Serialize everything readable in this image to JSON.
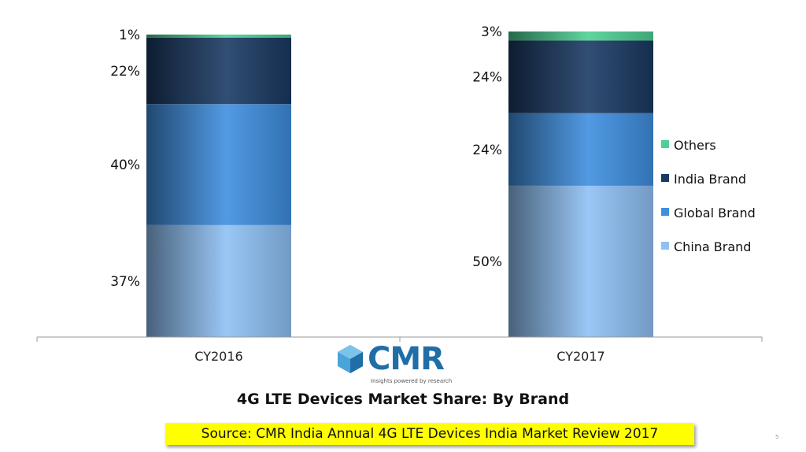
{
  "chart_data": {
    "type": "bar",
    "stacked": true,
    "title": "4G LTE Devices Market Share:  By Brand",
    "categories": [
      "CY2016",
      "CY2017"
    ],
    "series": [
      {
        "name": "China Brand",
        "values": [
          37,
          50
        ],
        "color": "#8fc1f5"
      },
      {
        "name": "Global Brand",
        "values": [
          40,
          24
        ],
        "color": "#3f8fe0"
      },
      {
        "name": "India Brand",
        "values": [
          22,
          24
        ],
        "color": "#1a3a63"
      },
      {
        "name": "Others",
        "values": [
          1,
          3
        ],
        "color": "#4fcf94"
      }
    ],
    "data_labels": [
      [
        "37%",
        "40%",
        "22%",
        "1%"
      ],
      [
        "50%",
        "24%",
        "24%",
        "3%"
      ]
    ],
    "ylim": [
      0,
      101
    ],
    "grid": false,
    "legend_position": "right"
  },
  "logo": {
    "text": "CMR",
    "tagline": "Insights powered by research"
  },
  "source": "Source:  CMR India Annual 4G LTE Devices India Market Review 2017",
  "page_number": "5"
}
